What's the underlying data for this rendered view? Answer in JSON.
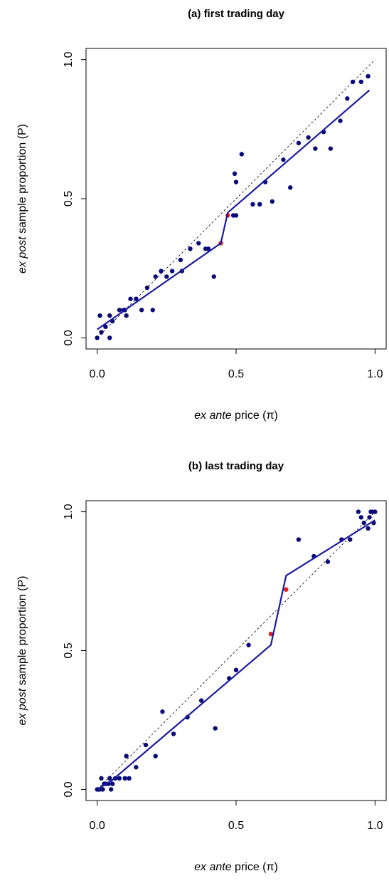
{
  "chart_data": [
    {
      "type": "scatter",
      "title": "(a) first trading day",
      "x_label": {
        "italic": "ex ante",
        "rest": "price (π)"
      },
      "y_label": {
        "italic": "ex post",
        "rest": "sample proportion (P)"
      },
      "xlim": [
        -0.04,
        1.04
      ],
      "ylim": [
        -0.04,
        1.04
      ],
      "xticks": [
        {
          "value": 0,
          "label": "0.0"
        },
        {
          "value": 0.5,
          "label": "0.5"
        },
        {
          "value": 1,
          "label": "1.0"
        }
      ],
      "yticks": [
        {
          "value": 0,
          "label": "0.0"
        },
        {
          "value": 0.5,
          "label": "0.5"
        },
        {
          "value": 1,
          "label": "1.0"
        }
      ],
      "diagonal": true,
      "series": [
        {
          "mode": "markers",
          "color": "#0a0a78",
          "x": [
            0,
            0.01,
            0.015,
            0.03,
            0.045,
            0.045,
            0.055,
            0.08,
            0.095,
            0.1,
            0.105,
            0.12,
            0.14,
            0.16,
            0.18,
            0.2,
            0.21,
            0.23,
            0.25,
            0.27,
            0.3,
            0.305,
            0.335,
            0.365,
            0.39,
            0.4,
            0.42,
            0.49,
            0.5,
            0.495,
            0.5,
            0.52,
            0.56,
            0.585,
            0.605,
            0.63,
            0.67,
            0.695,
            0.725,
            0.76,
            0.785,
            0.815,
            0.84,
            0.875,
            0.9,
            0.92,
            0.95,
            0.975
          ],
          "y": [
            0,
            0.08,
            0.02,
            0.04,
            0.08,
            0,
            0.06,
            0.1,
            0.1,
            0.1,
            0.08,
            0.14,
            0.14,
            0.1,
            0.18,
            0.1,
            0.22,
            0.24,
            0.22,
            0.24,
            0.28,
            0.24,
            0.32,
            0.34,
            0.32,
            0.32,
            0.22,
            0.44,
            0.44,
            0.59,
            0.56,
            0.66,
            0.48,
            0.48,
            0.56,
            0.49,
            0.64,
            0.54,
            0.7,
            0.72,
            0.68,
            0.74,
            0.68,
            0.78,
            0.86,
            0.92,
            0.92,
            0.94
          ]
        },
        {
          "mode": "markers",
          "color": "#e0201c",
          "x": [
            0.445,
            0.47
          ],
          "y": [
            0.34,
            0.44
          ]
        },
        {
          "mode": "line",
          "color": "#1a1aa0",
          "x": [
            0,
            0.445,
            0.47,
            0.98
          ],
          "y": [
            0.03,
            0.34,
            0.45,
            0.89
          ]
        }
      ]
    },
    {
      "type": "scatter",
      "title": "(b) last trading day",
      "x_label": {
        "italic": "ex ante",
        "rest": "price (π)"
      },
      "y_label": {
        "italic": "ex post",
        "rest": "sample proportion (P)"
      },
      "xlim": [
        -0.04,
        1.04
      ],
      "ylim": [
        -0.04,
        1.04
      ],
      "xticks": [
        {
          "value": 0,
          "label": "0.0"
        },
        {
          "value": 0.5,
          "label": "0.5"
        },
        {
          "value": 1,
          "label": "1.0"
        }
      ],
      "yticks": [
        {
          "value": 0,
          "label": "0.0"
        },
        {
          "value": 0.5,
          "label": "0.5"
        },
        {
          "value": 1,
          "label": "1.0"
        }
      ],
      "diagonal": true,
      "series": [
        {
          "mode": "markers",
          "color": "#0a0a78",
          "x": [
            0,
            0.005,
            0.01,
            0.015,
            0.02,
            0.025,
            0.03,
            0.04,
            0.045,
            0.05,
            0.055,
            0.065,
            0.08,
            0.1,
            0.105,
            0.115,
            0.14,
            0.175,
            0.21,
            0.235,
            0.275,
            0.325,
            0.375,
            0.425,
            0.475,
            0.5,
            0.545,
            0.725,
            0.78,
            0.83,
            0.88,
            0.91,
            0.94,
            0.95,
            0.96,
            0.975,
            0.98,
            0.985,
            0.99,
            0.995,
            1
          ],
          "y": [
            0,
            0,
            0,
            0.04,
            0,
            0.02,
            0.02,
            0.02,
            0.04,
            0,
            0.02,
            0.04,
            0.04,
            0.04,
            0.12,
            0.04,
            0.08,
            0.16,
            0.12,
            0.28,
            0.2,
            0.26,
            0.32,
            0.22,
            0.4,
            0.43,
            0.52,
            0.9,
            0.84,
            0.82,
            0.9,
            0.9,
            1,
            0.98,
            0.96,
            0.94,
            0.98,
            1,
            1,
            0.96,
            1
          ]
        },
        {
          "mode": "markers",
          "color": "#e0201c",
          "x": [
            0.625,
            0.68
          ],
          "y": [
            0.56,
            0.72
          ]
        },
        {
          "mode": "line",
          "color": "#1a1aa0",
          "x": [
            0,
            0.05,
            0.625,
            0.68,
            1
          ],
          "y": [
            0,
            0.03,
            0.52,
            0.77,
            0.97
          ]
        }
      ]
    }
  ]
}
